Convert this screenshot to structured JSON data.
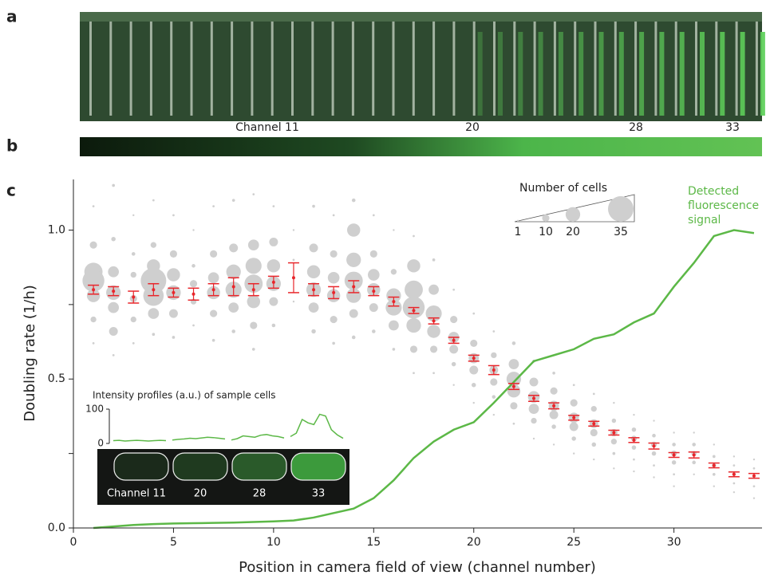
{
  "panel_labels": [
    "a",
    "b",
    "c"
  ],
  "channel_labels": [
    "Channel 11",
    "20",
    "28",
    "33"
  ],
  "chart_data": {
    "type": "bubble",
    "xlabel": "Position in camera field of view (channel number)",
    "ylabel": "Doubling rate (1/h)",
    "xlim": [
      0,
      34.4
    ],
    "ylim": [
      0,
      1.17
    ],
    "xticks": [
      0,
      5,
      10,
      15,
      20,
      25,
      30
    ],
    "yticks": [
      {
        "value": 0,
        "label": "0.0"
      },
      {
        "value": 0.5,
        "label": "0.5"
      },
      {
        "value": 1,
        "label": "1.0"
      }
    ],
    "yminor": [
      0.25,
      0.75
    ],
    "x": [
      1,
      2,
      3,
      4,
      5,
      6,
      7,
      8,
      9,
      10,
      11,
      12,
      13,
      14,
      15,
      16,
      17,
      18,
      19,
      20,
      21,
      22,
      23,
      24,
      25,
      26,
      27,
      28,
      29,
      30,
      31,
      32,
      33,
      34
    ],
    "mean": {
      "color": "#e8262b",
      "values": [
        0.8,
        0.795,
        0.775,
        0.8,
        0.79,
        0.785,
        0.8,
        0.81,
        0.8,
        0.825,
        0.84,
        0.8,
        0.79,
        0.81,
        0.795,
        0.76,
        0.73,
        0.695,
        0.63,
        0.57,
        0.53,
        0.475,
        0.435,
        0.41,
        0.37,
        0.35,
        0.32,
        0.295,
        0.275,
        0.245,
        0.245,
        0.21,
        0.18,
        0.175
      ],
      "errors": [
        0.015,
        0.015,
        0.02,
        0.02,
        0.015,
        0.02,
        0.02,
        0.03,
        0.02,
        0.02,
        0.05,
        0.02,
        0.02,
        0.02,
        0.015,
        0.015,
        0.01,
        0.01,
        0.01,
        0.01,
        0.015,
        0.01,
        0.01,
        0.01,
        0.008,
        0.008,
        0.008,
        0.008,
        0.01,
        0.008,
        0.01,
        0.008,
        0.008,
        0.008
      ]
    },
    "fluorescence": {
      "name": "Detected fluorescence signal",
      "color": "#5cb847",
      "values": [
        0,
        0.005,
        0.01,
        0.013,
        0.015,
        0.016,
        0.017,
        0.018,
        0.02,
        0.022,
        0.025,
        0.035,
        0.05,
        0.065,
        0.1,
        0.16,
        0.235,
        0.29,
        0.33,
        0.355,
        0.42,
        0.49,
        0.56,
        0.58,
        0.6,
        0.635,
        0.65,
        0.69,
        0.72,
        0.81,
        0.89,
        0.98,
        1.0,
        0.99
      ]
    },
    "bubble_color": "#cfcfcf",
    "bubbles": [
      {
        "x": 1,
        "y": [
          1.08,
          0.95,
          0.86,
          0.83,
          0.78,
          0.7,
          0.62
        ],
        "n": [
          3,
          10,
          25,
          30,
          18,
          8,
          3
        ]
      },
      {
        "x": 2,
        "y": [
          1.15,
          0.97,
          0.86,
          0.79,
          0.74,
          0.66,
          0.58
        ],
        "n": [
          4,
          6,
          15,
          20,
          15,
          12,
          3
        ]
      },
      {
        "x": 3,
        "y": [
          1.05,
          0.92,
          0.85,
          0.77,
          0.7,
          0.62
        ],
        "n": [
          2,
          5,
          8,
          10,
          8,
          3
        ]
      },
      {
        "x": 4,
        "y": [
          1.1,
          0.95,
          0.88,
          0.83,
          0.78,
          0.72,
          0.65
        ],
        "n": [
          3,
          8,
          18,
          35,
          28,
          15,
          4
        ]
      },
      {
        "x": 5,
        "y": [
          1.05,
          0.92,
          0.85,
          0.79,
          0.72,
          0.64
        ],
        "n": [
          3,
          10,
          18,
          20,
          12,
          4
        ]
      },
      {
        "x": 6,
        "y": [
          1,
          0.88,
          0.82,
          0.76,
          0.68
        ],
        "n": [
          2,
          5,
          10,
          8,
          3
        ]
      },
      {
        "x": 7,
        "y": [
          1.08,
          0.92,
          0.84,
          0.79,
          0.72,
          0.63
        ],
        "n": [
          3,
          10,
          15,
          18,
          10,
          4
        ]
      },
      {
        "x": 8,
        "y": [
          1.1,
          0.94,
          0.86,
          0.8,
          0.74,
          0.66
        ],
        "n": [
          4,
          12,
          20,
          22,
          14,
          5
        ]
      },
      {
        "x": 9,
        "y": [
          1.12,
          0.95,
          0.88,
          0.82,
          0.76,
          0.68,
          0.6
        ],
        "n": [
          3,
          15,
          22,
          25,
          18,
          10,
          4
        ]
      },
      {
        "x": 10,
        "y": [
          1.08,
          0.96,
          0.88,
          0.82,
          0.76,
          0.68
        ],
        "n": [
          3,
          12,
          18,
          20,
          12,
          5
        ]
      },
      {
        "x": 11,
        "y": [
          1,
          0.9,
          0.84,
          0.76
        ],
        "n": [
          2,
          3,
          4,
          2
        ]
      },
      {
        "x": 12,
        "y": [
          1.08,
          0.94,
          0.86,
          0.8,
          0.74,
          0.66
        ],
        "n": [
          4,
          12,
          18,
          20,
          14,
          6
        ]
      },
      {
        "x": 13,
        "y": [
          1.05,
          0.92,
          0.84,
          0.78,
          0.7,
          0.62
        ],
        "n": [
          3,
          10,
          16,
          18,
          10,
          4
        ]
      },
      {
        "x": 14,
        "y": [
          1.1,
          1,
          0.9,
          0.83,
          0.78,
          0.72,
          0.64
        ],
        "n": [
          5,
          18,
          20,
          25,
          20,
          12,
          5
        ]
      },
      {
        "x": 15,
        "y": [
          1.05,
          0.92,
          0.85,
          0.8,
          0.74,
          0.66
        ],
        "n": [
          3,
          10,
          16,
          18,
          12,
          5
        ]
      },
      {
        "x": 16,
        "y": [
          1,
          0.86,
          0.78,
          0.74,
          0.68,
          0.6
        ],
        "n": [
          2,
          8,
          20,
          22,
          14,
          4
        ]
      },
      {
        "x": 17,
        "y": [
          0.98,
          0.88,
          0.8,
          0.74,
          0.68,
          0.6,
          0.52
        ],
        "n": [
          3,
          18,
          25,
          30,
          20,
          10,
          3
        ]
      },
      {
        "x": 18,
        "y": [
          0.9,
          0.8,
          0.72,
          0.66,
          0.6,
          0.52
        ],
        "n": [
          4,
          14,
          22,
          18,
          10,
          3
        ]
      },
      {
        "x": 19,
        "y": [
          0.8,
          0.7,
          0.64,
          0.6,
          0.55,
          0.48
        ],
        "n": [
          3,
          10,
          15,
          12,
          6,
          2
        ]
      },
      {
        "x": 20,
        "y": [
          0.72,
          0.62,
          0.57,
          0.53,
          0.48,
          0.42
        ],
        "n": [
          3,
          10,
          14,
          12,
          6,
          2
        ]
      },
      {
        "x": 21,
        "y": [
          0.66,
          0.58,
          0.53,
          0.49,
          0.44,
          0.38
        ],
        "n": [
          3,
          8,
          12,
          10,
          5,
          2
        ]
      },
      {
        "x": 22,
        "y": [
          0.62,
          0.55,
          0.5,
          0.46,
          0.41,
          0.35
        ],
        "n": [
          5,
          14,
          20,
          18,
          10,
          3
        ]
      },
      {
        "x": 23,
        "y": [
          0.56,
          0.49,
          0.44,
          0.4,
          0.36,
          0.3
        ],
        "n": [
          4,
          12,
          16,
          14,
          8,
          2
        ]
      },
      {
        "x": 24,
        "y": [
          0.52,
          0.46,
          0.41,
          0.38,
          0.34,
          0.28
        ],
        "n": [
          4,
          10,
          14,
          12,
          6,
          2
        ]
      },
      {
        "x": 25,
        "y": [
          0.48,
          0.42,
          0.37,
          0.34,
          0.3,
          0.25
        ],
        "n": [
          3,
          10,
          14,
          12,
          6,
          2
        ]
      },
      {
        "x": 26,
        "y": [
          0.45,
          0.4,
          0.35,
          0.32,
          0.28,
          0.23
        ],
        "n": [
          3,
          8,
          12,
          10,
          6,
          2
        ]
      },
      {
        "x": 27,
        "y": [
          0.42,
          0.36,
          0.32,
          0.29,
          0.25,
          0.2
        ],
        "n": [
          2,
          6,
          10,
          8,
          4,
          1
        ]
      },
      {
        "x": 28,
        "y": [
          0.38,
          0.33,
          0.3,
          0.27,
          0.23,
          0.19
        ],
        "n": [
          2,
          6,
          8,
          6,
          3,
          1
        ]
      },
      {
        "x": 29,
        "y": [
          0.36,
          0.31,
          0.28,
          0.25,
          0.21,
          0.17
        ],
        "n": [
          2,
          5,
          8,
          6,
          3,
          1
        ]
      },
      {
        "x": 30,
        "y": [
          0.32,
          0.28,
          0.25,
          0.22,
          0.18,
          0.14
        ],
        "n": [
          2,
          5,
          8,
          6,
          3,
          1
        ]
      },
      {
        "x": 31,
        "y": [
          0.32,
          0.28,
          0.25,
          0.22,
          0.18
        ],
        "n": [
          2,
          5,
          7,
          5,
          2
        ]
      },
      {
        "x": 32,
        "y": [
          0.28,
          0.24,
          0.21,
          0.18,
          0.14
        ],
        "n": [
          2,
          4,
          6,
          4,
          2
        ]
      },
      {
        "x": 33,
        "y": [
          0.24,
          0.21,
          0.18,
          0.15,
          0.12
        ],
        "n": [
          1,
          3,
          5,
          3,
          1
        ]
      },
      {
        "x": 34,
        "y": [
          0.23,
          0.2,
          0.17,
          0.14,
          0.1
        ],
        "n": [
          1,
          3,
          4,
          3,
          1
        ]
      }
    ],
    "size_legend": {
      "title": "Number of cells",
      "values": [
        1,
        10,
        20,
        35
      ]
    },
    "inset": {
      "title": "Intensity profiles (a.u.) of sample cells",
      "ylim": [
        0,
        100
      ],
      "yticks": [
        0,
        100
      ],
      "profiles": [
        [
          8,
          9,
          7,
          8,
          9,
          8,
          7,
          8,
          9,
          8
        ],
        [
          10,
          12,
          13,
          15,
          14,
          16,
          18,
          17,
          15,
          13
        ],
        [
          10,
          14,
          22,
          20,
          18,
          24,
          26,
          22,
          20,
          16
        ],
        [
          20,
          30,
          70,
          60,
          55,
          85,
          80,
          40,
          25,
          15
        ]
      ],
      "labels": [
        "Channel 11",
        "20",
        "28",
        "33"
      ]
    }
  }
}
